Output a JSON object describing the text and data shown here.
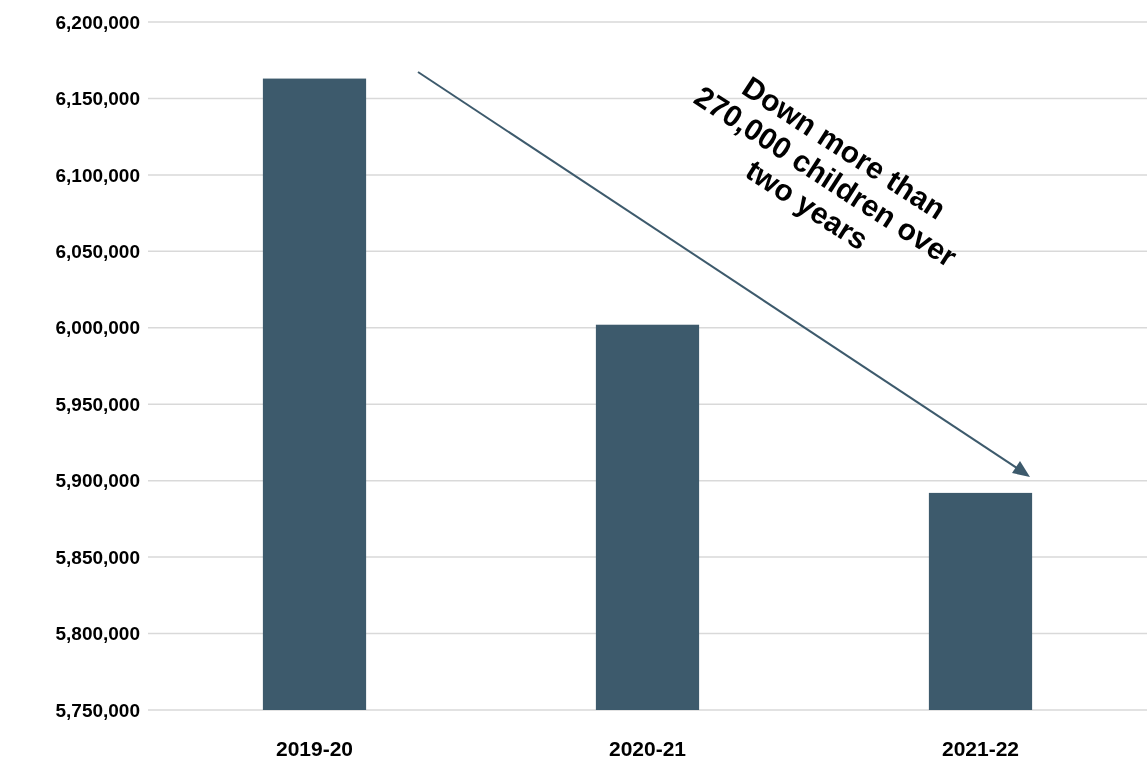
{
  "chart_data": {
    "type": "bar",
    "categories": [
      "2019-20",
      "2020-21",
      "2021-22"
    ],
    "values": [
      6163000,
      6002000,
      5892000
    ],
    "color": "#3d5a6c",
    "ylim": [
      5750000,
      6200000
    ],
    "yticks": [
      {
        "value": 5750000,
        "label": "5,750,000"
      },
      {
        "value": 5800000,
        "label": "5,800,000"
      },
      {
        "value": 5850000,
        "label": "5,850,000"
      },
      {
        "value": 5900000,
        "label": "5,900,000"
      },
      {
        "value": 5950000,
        "label": "5,950,000"
      },
      {
        "value": 6000000,
        "label": "6,000,000"
      },
      {
        "value": 6050000,
        "label": "6,050,000"
      },
      {
        "value": 6100000,
        "label": "6,100,000"
      },
      {
        "value": 6150000,
        "label": "6,150,000"
      },
      {
        "value": 6200000,
        "label": "6,200,000"
      }
    ],
    "grid": "y",
    "annotations": [
      "Down more than\n270,000 children over\ntwo years"
    ]
  }
}
